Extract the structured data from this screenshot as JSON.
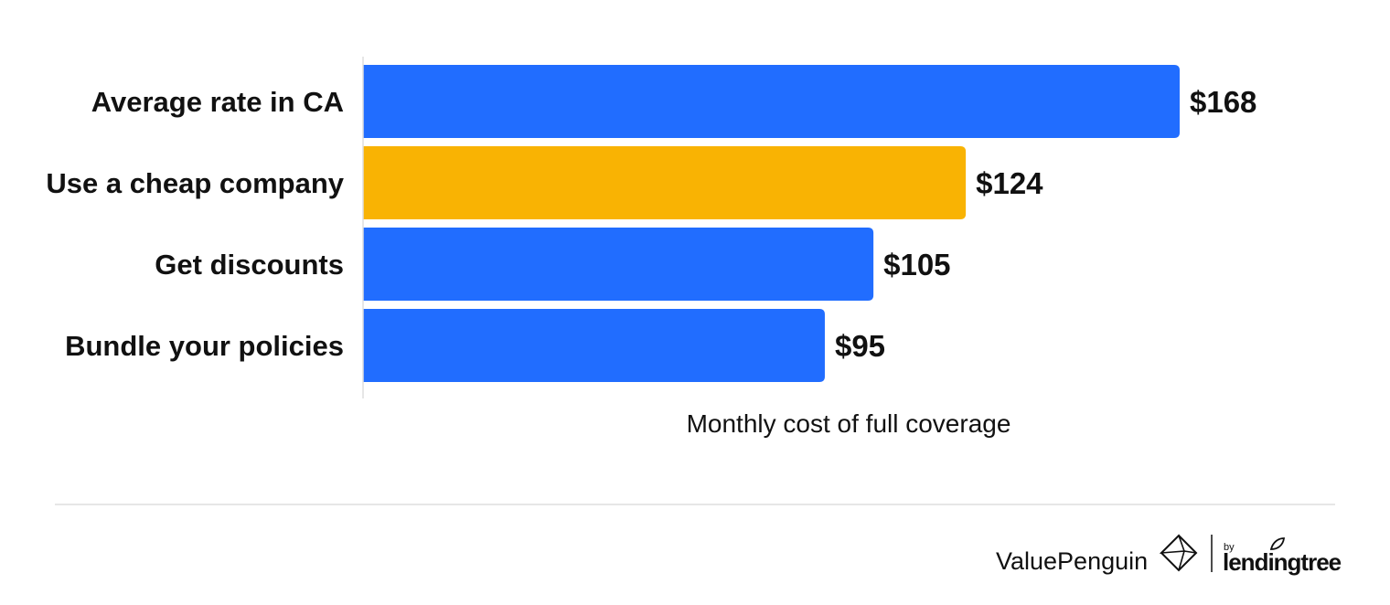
{
  "chart_data": {
    "type": "bar",
    "orientation": "horizontal",
    "categories": [
      "Average rate in CA",
      "Use a cheap company",
      "Get discounts",
      "Bundle your policies"
    ],
    "values": [
      168,
      124,
      105,
      95
    ],
    "value_labels": [
      "$168",
      "$124",
      "$105",
      "$95"
    ],
    "bar_colors": [
      "#216dff",
      "#f9b303",
      "#216dff",
      "#216dff"
    ],
    "xlabel": "Monthly cost of full coverage",
    "xlim": [
      0,
      168
    ],
    "grid": false
  },
  "footer": {
    "brand": "ValuePenguin",
    "by": "by",
    "partner": "lendingtree"
  },
  "colors": {
    "primary_bar": "#216dff",
    "highlight_bar": "#f9b303",
    "divider": "#dddddd",
    "axis": "#dddddd"
  },
  "icons": {
    "brand_logo": "valuepenguin-diamond-icon",
    "partner_leaf": "leaf-icon"
  }
}
